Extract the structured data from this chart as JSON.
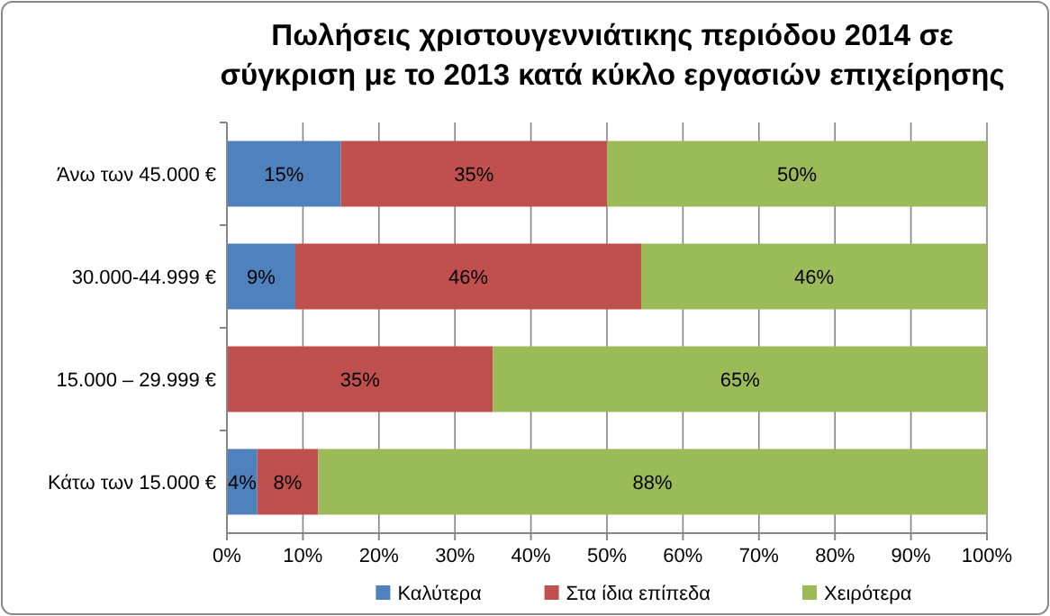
{
  "chart_data": {
    "type": "bar",
    "orientation": "horizontal",
    "stacked": true,
    "title": "Πωλήσεις χριστουγεννιάτικης περιόδου 2014 σε\nσύγκριση με το 2013 κατά κύκλο εργασιών επιχείρησης",
    "categories": [
      "Άνω των 45.000 €",
      "30.000-44.999 €",
      "15.000 – 29.999 €",
      "Κάτω των 15.000 €"
    ],
    "series": [
      {
        "name": "Καλύτερα",
        "color": "#4f81bd",
        "values": [
          15,
          9,
          null,
          4
        ],
        "value_labels": [
          "15%",
          "9%",
          null,
          "4%"
        ]
      },
      {
        "name": "Στα ίδια επίπεδα",
        "color": "#c0504d",
        "values": [
          35,
          45.5,
          35,
          8
        ],
        "value_labels": [
          "35%",
          "46%",
          "35%",
          "8%"
        ]
      },
      {
        "name": "Χειρότερα",
        "color": "#9bbb59",
        "values": [
          50,
          45.5,
          65,
          88
        ],
        "value_labels": [
          "50%",
          "46%",
          "65%",
          "88%"
        ]
      }
    ],
    "xlim": [
      0,
      100
    ],
    "xticks": [
      {
        "value": 0,
        "label": "0%"
      },
      {
        "value": 10,
        "label": "10%"
      },
      {
        "value": 20,
        "label": "20%"
      },
      {
        "value": 30,
        "label": "30%"
      },
      {
        "value": 40,
        "label": "40%"
      },
      {
        "value": 50,
        "label": "50%"
      },
      {
        "value": 60,
        "label": "60%"
      },
      {
        "value": 70,
        "label": "70%"
      },
      {
        "value": 80,
        "label": "80%"
      },
      {
        "value": 90,
        "label": "90%"
      },
      {
        "value": 100,
        "label": "100%"
      }
    ],
    "grid": "x",
    "legend": "bottom"
  }
}
